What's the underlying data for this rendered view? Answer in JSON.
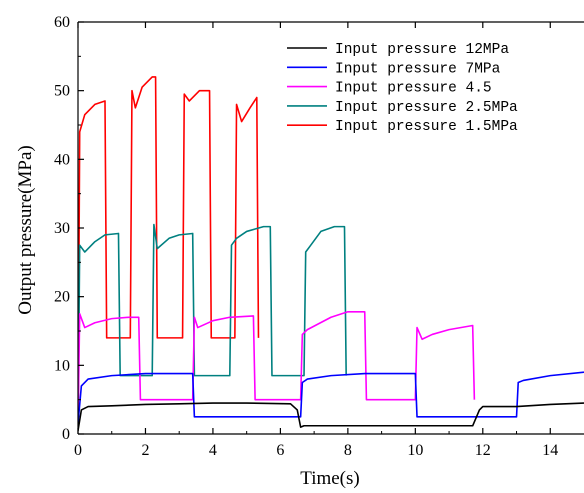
{
  "chart_data": {
    "type": "line",
    "title": "",
    "xlabel": "Time(s)",
    "ylabel": "Output pressure(MPa)",
    "xlim": [
      0,
      15
    ],
    "ylim": [
      0,
      60
    ],
    "xticks": [
      0,
      2,
      4,
      6,
      8,
      10,
      12,
      14
    ],
    "yticks": [
      0,
      10,
      20,
      30,
      40,
      50,
      60
    ],
    "grid": false,
    "legend_position": "top-right",
    "series": [
      {
        "name": "Input pressure 12MPa",
        "color": "#000000",
        "points": [
          [
            0,
            0.5
          ],
          [
            0.1,
            3.5
          ],
          [
            0.3,
            4.0
          ],
          [
            1.0,
            4.1
          ],
          [
            2.0,
            4.3
          ],
          [
            3.0,
            4.4
          ],
          [
            4.0,
            4.5
          ],
          [
            5.0,
            4.5
          ],
          [
            6.3,
            4.4
          ],
          [
            6.5,
            3.5
          ],
          [
            6.6,
            1.0
          ],
          [
            6.7,
            1.2
          ],
          [
            8.0,
            1.2
          ],
          [
            10.0,
            1.2
          ],
          [
            11.7,
            1.2
          ],
          [
            11.9,
            3.5
          ],
          [
            12.0,
            4.0
          ],
          [
            13.0,
            4.0
          ],
          [
            14.0,
            4.3
          ],
          [
            15.0,
            4.5
          ]
        ]
      },
      {
        "name": "Input pressure 7MPa",
        "color": "#0000ff",
        "points": [
          [
            0,
            1.5
          ],
          [
            0.1,
            7.0
          ],
          [
            0.3,
            8.0
          ],
          [
            1.0,
            8.5
          ],
          [
            2.0,
            8.8
          ],
          [
            3.0,
            8.8
          ],
          [
            3.4,
            8.8
          ],
          [
            3.45,
            2.5
          ],
          [
            4.0,
            2.5
          ],
          [
            5.0,
            2.5
          ],
          [
            6.0,
            2.5
          ],
          [
            6.6,
            2.5
          ],
          [
            6.65,
            7.5
          ],
          [
            6.8,
            8.0
          ],
          [
            7.5,
            8.5
          ],
          [
            8.5,
            8.8
          ],
          [
            10.0,
            8.8
          ],
          [
            10.05,
            2.5
          ],
          [
            11.0,
            2.5
          ],
          [
            12.0,
            2.5
          ],
          [
            13.0,
            2.5
          ],
          [
            13.05,
            7.5
          ],
          [
            13.2,
            7.8
          ],
          [
            14.0,
            8.5
          ],
          [
            15.0,
            9.0
          ]
        ]
      },
      {
        "name": "Input pressure 4.5",
        "color": "#ff00ff",
        "points": [
          [
            0,
            0.8
          ],
          [
            0.05,
            17.5
          ],
          [
            0.2,
            15.5
          ],
          [
            0.5,
            16.2
          ],
          [
            1.0,
            16.8
          ],
          [
            1.5,
            17.0
          ],
          [
            1.8,
            17.0
          ],
          [
            1.85,
            5.0
          ],
          [
            2.5,
            5.0
          ],
          [
            3.4,
            5.0
          ],
          [
            3.45,
            17.0
          ],
          [
            3.55,
            15.5
          ],
          [
            4.0,
            16.5
          ],
          [
            4.5,
            17.0
          ],
          [
            5.2,
            17.2
          ],
          [
            5.25,
            5.0
          ],
          [
            6.0,
            5.0
          ],
          [
            6.6,
            5.0
          ],
          [
            6.65,
            14.5
          ],
          [
            6.8,
            15.2
          ],
          [
            7.5,
            17.0
          ],
          [
            8.0,
            17.8
          ],
          [
            8.5,
            17.8
          ],
          [
            8.55,
            5.0
          ],
          [
            9.5,
            5.0
          ],
          [
            10.0,
            5.0
          ],
          [
            10.05,
            15.5
          ],
          [
            10.2,
            13.8
          ],
          [
            10.5,
            14.5
          ],
          [
            11.0,
            15.2
          ],
          [
            11.7,
            15.8
          ],
          [
            11.75,
            5.0
          ]
        ]
      },
      {
        "name": "Input pressure 2.5MPa",
        "color": "#008080",
        "points": [
          [
            0,
            0.5
          ],
          [
            0.05,
            27.5
          ],
          [
            0.2,
            26.5
          ],
          [
            0.5,
            28.0
          ],
          [
            0.8,
            29.0
          ],
          [
            1.2,
            29.2
          ],
          [
            1.25,
            8.5
          ],
          [
            1.8,
            8.5
          ],
          [
            2.2,
            8.5
          ],
          [
            2.25,
            30.5
          ],
          [
            2.35,
            27.0
          ],
          [
            2.7,
            28.5
          ],
          [
            3.0,
            29.0
          ],
          [
            3.4,
            29.2
          ],
          [
            3.45,
            8.5
          ],
          [
            4.0,
            8.5
          ],
          [
            4.5,
            8.5
          ],
          [
            4.55,
            27.5
          ],
          [
            4.7,
            28.5
          ],
          [
            5.0,
            29.5
          ],
          [
            5.5,
            30.2
          ],
          [
            5.7,
            30.2
          ],
          [
            5.75,
            8.5
          ],
          [
            6.2,
            8.5
          ],
          [
            6.7,
            8.5
          ],
          [
            6.75,
            26.5
          ],
          [
            6.9,
            27.5
          ],
          [
            7.2,
            29.5
          ],
          [
            7.6,
            30.2
          ],
          [
            7.9,
            30.2
          ],
          [
            7.95,
            8.5
          ]
        ]
      },
      {
        "name": "Input pressure 1.5MPa",
        "color": "#ff0000",
        "points": [
          [
            0,
            0.5
          ],
          [
            0.05,
            44.0
          ],
          [
            0.2,
            46.5
          ],
          [
            0.5,
            48.0
          ],
          [
            0.8,
            48.5
          ],
          [
            0.85,
            14.0
          ],
          [
            1.2,
            14.0
          ],
          [
            1.55,
            14.0
          ],
          [
            1.6,
            50.0
          ],
          [
            1.7,
            47.5
          ],
          [
            1.9,
            50.5
          ],
          [
            2.2,
            52.0
          ],
          [
            2.3,
            52.0
          ],
          [
            2.35,
            14.0
          ],
          [
            2.8,
            14.0
          ],
          [
            3.1,
            14.0
          ],
          [
            3.15,
            49.5
          ],
          [
            3.3,
            48.5
          ],
          [
            3.6,
            50.0
          ],
          [
            3.9,
            50.0
          ],
          [
            3.95,
            14.0
          ],
          [
            4.3,
            14.0
          ],
          [
            4.65,
            14.0
          ],
          [
            4.7,
            48.0
          ],
          [
            4.85,
            45.5
          ],
          [
            5.1,
            47.5
          ],
          [
            5.3,
            49.0
          ],
          [
            5.35,
            14.0
          ]
        ]
      }
    ]
  }
}
